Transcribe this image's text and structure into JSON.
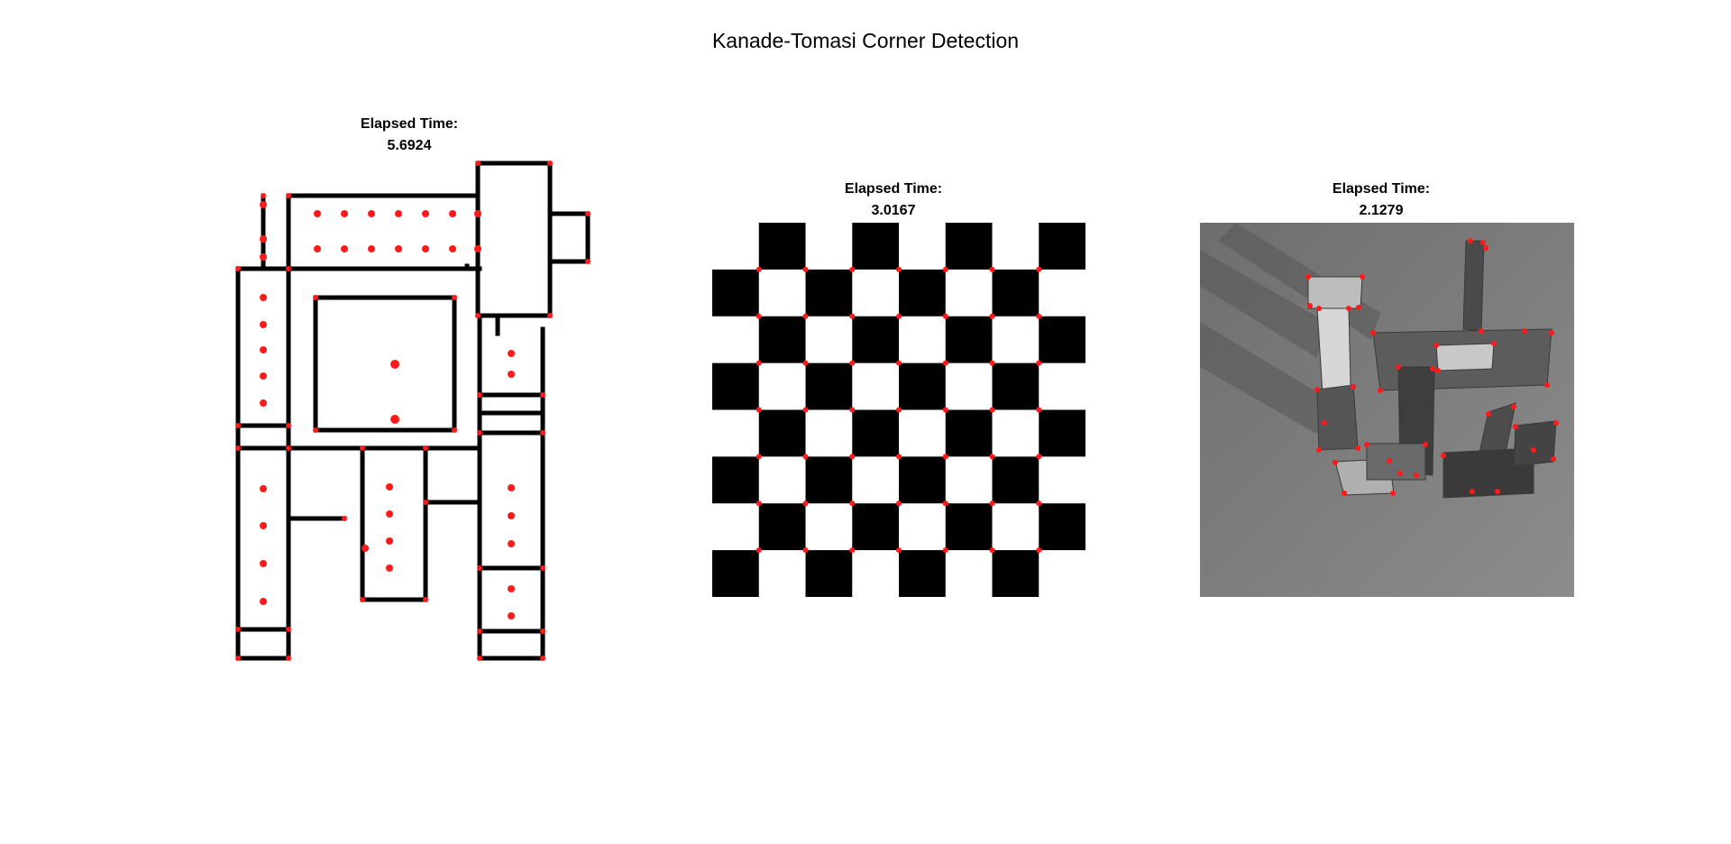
{
  "figure": {
    "title": "Kanade-Tomasi Corner Detection",
    "panels": [
      {
        "label": "Elapsed Time:",
        "value": "5.6924"
      },
      {
        "label": "Elapsed Time:",
        "value": "3.0167"
      },
      {
        "label": "Elapsed Time:",
        "value": "2.1279"
      }
    ]
  },
  "colors": {
    "marker": "#ff1a1a",
    "wall": "#000000",
    "background": "#ffffff"
  }
}
